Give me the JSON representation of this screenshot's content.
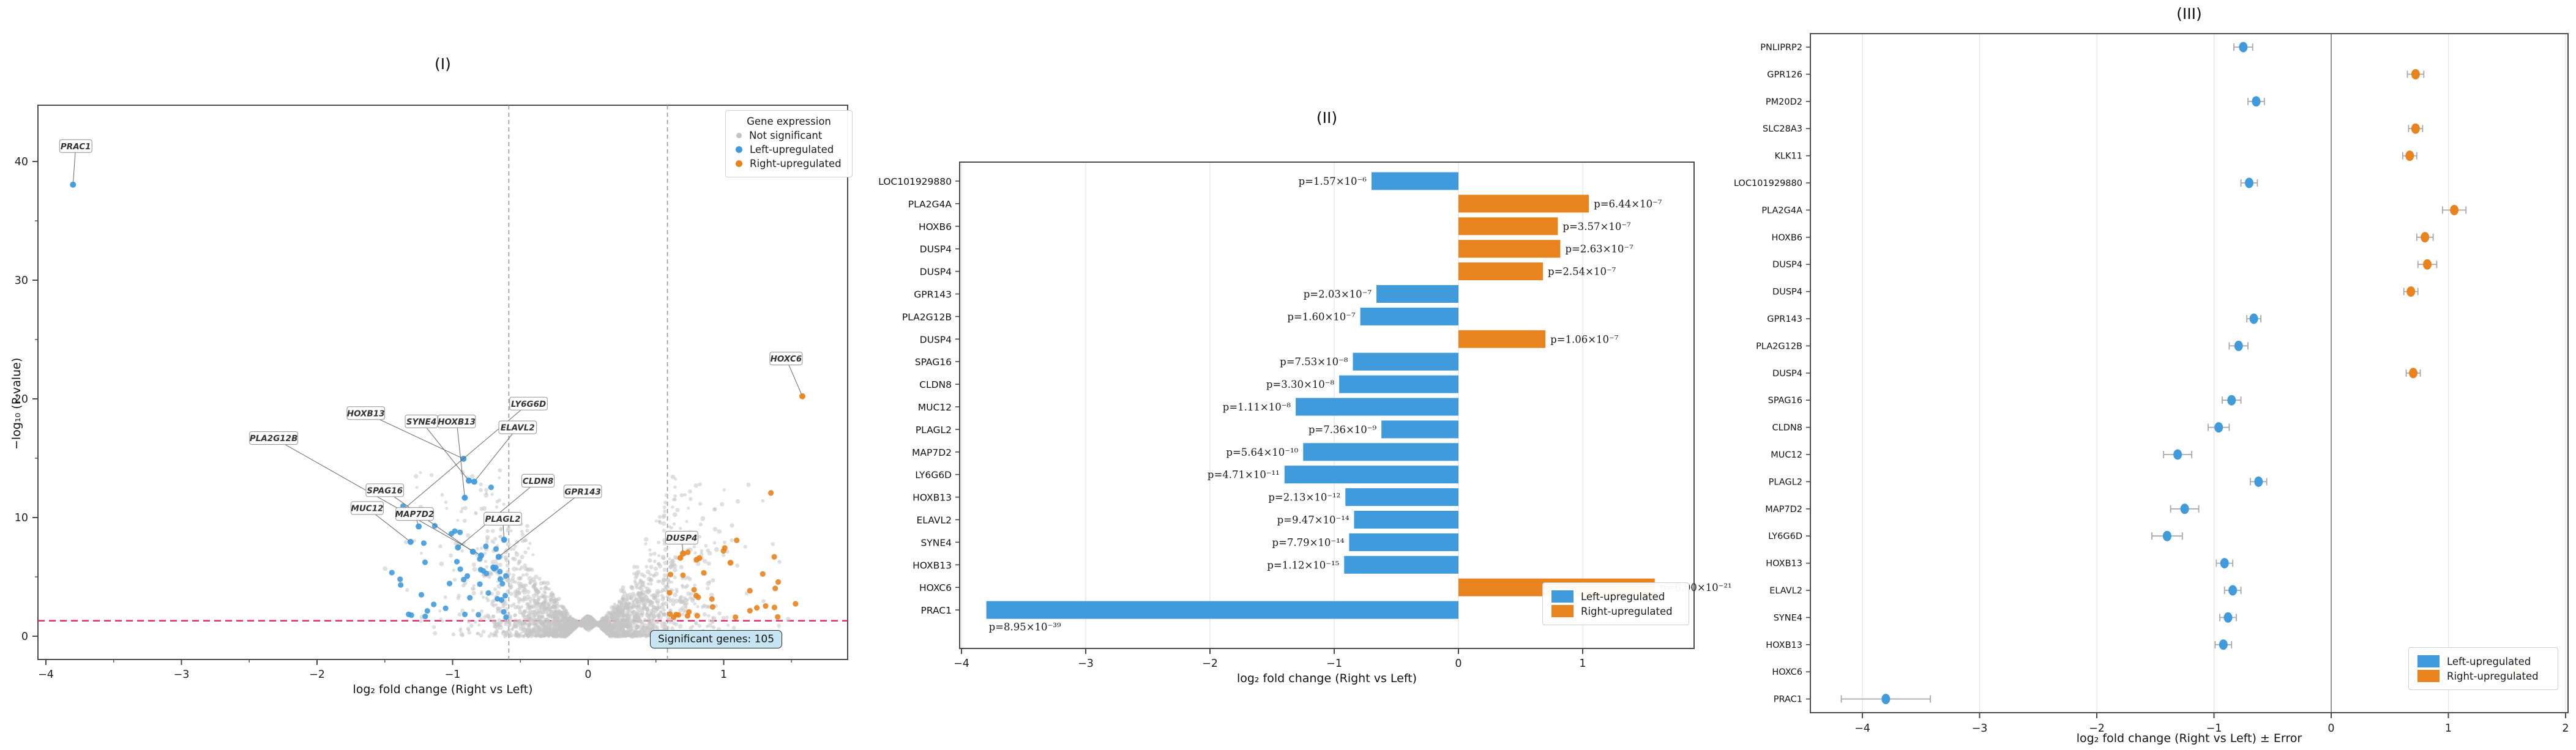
{
  "colors": {
    "left_up": "#3f9bdc",
    "right_up": "#e8831d",
    "not_significant": "#c4c4c4",
    "p_threshold_line": "#e22667",
    "fc_threshold_line": "#9a9a9a",
    "badge_bg": "#c7e4f2",
    "grid": "#e3e3e3",
    "spine": "#4a4a4a"
  },
  "chart_data": [
    {
      "id": "volcano",
      "type": "scatter",
      "title": "(I)",
      "xlabel": "log₂ fold change (Right vs Left)",
      "ylabel": "−log₁₀ (P-value)",
      "xlim": [
        -4.06,
        1.91
      ],
      "ylim": [
        -2.0,
        44.7
      ],
      "xticks": [
        "−4",
        "−3",
        "−2",
        "−1",
        "0",
        "1"
      ],
      "xtick_values": [
        -4,
        -3,
        -2,
        -1,
        0,
        1
      ],
      "yticks": [
        "0",
        "10",
        "20",
        "30",
        "40"
      ],
      "ytick_values": [
        0,
        10,
        20,
        30,
        40
      ],
      "p_threshold_y": 1.301,
      "fc_threshold_x": [
        -0.585,
        0.585
      ],
      "legend": {
        "title": "Gene expression",
        "items": [
          {
            "label": "Not significant",
            "group": "ns"
          },
          {
            "label": "Left-upregulated",
            "group": "left"
          },
          {
            "label": "Right-upregulated",
            "group": "right"
          }
        ]
      },
      "badge": "Significant genes: 105",
      "labeled_points": [
        {
          "gene": "PRAC1",
          "x": -3.8,
          "y": 38.05,
          "group": "left",
          "lx": -3.78,
          "ly": 41.3
        },
        {
          "gene": "PLA2G12B",
          "x": -0.79,
          "y": 6.8,
          "group": "left",
          "lx": -2.32,
          "ly": 16.7
        },
        {
          "gene": "HOXB13",
          "x": -0.92,
          "y": 14.95,
          "group": "left",
          "lx": -1.64,
          "ly": 18.8
        },
        {
          "gene": "SYNE4",
          "x": -0.88,
          "y": 13.11,
          "group": "left",
          "lx": -1.23,
          "ly": 18.1
        },
        {
          "gene": "HOXB13",
          "x": -0.91,
          "y": 11.67,
          "group": "left",
          "lx": -0.97,
          "ly": 18.1
        },
        {
          "gene": "LY6G6D",
          "x": -1.4,
          "y": 10.33,
          "group": "left",
          "lx": -0.44,
          "ly": 19.6
        },
        {
          "gene": "ELAVL2",
          "x": -0.84,
          "y": 13.02,
          "group": "left",
          "lx": -0.52,
          "ly": 17.6
        },
        {
          "gene": "SPAG16",
          "x": -0.85,
          "y": 7.12,
          "group": "left",
          "lx": -1.5,
          "ly": 12.3
        },
        {
          "gene": "MUC12",
          "x": -1.31,
          "y": 7.95,
          "group": "left",
          "lx": -1.63,
          "ly": 10.8
        },
        {
          "gene": "MAP7D2",
          "x": -1.25,
          "y": 9.25,
          "group": "left",
          "lx": -1.28,
          "ly": 10.3
        },
        {
          "gene": "PLAGL2",
          "x": -0.62,
          "y": 8.13,
          "group": "left",
          "lx": -0.63,
          "ly": 9.9
        },
        {
          "gene": "CLDN8",
          "x": -0.96,
          "y": 7.48,
          "group": "left",
          "lx": -0.37,
          "ly": 13.1
        },
        {
          "gene": "GPR143",
          "x": -0.66,
          "y": 6.69,
          "group": "left",
          "lx": -0.04,
          "ly": 12.2
        },
        {
          "gene": "DUSP4",
          "x": 0.7,
          "y": 6.97,
          "group": "right",
          "lx": 0.69,
          "ly": 8.3
        },
        {
          "gene": "HOXC6",
          "x": 1.58,
          "y": 20.22,
          "group": "right",
          "lx": 1.46,
          "ly": 23.4
        }
      ],
      "unlabeled_known_points": [
        {
          "gene": "LOC101929880",
          "x": -0.7,
          "y": 5.8,
          "group": "left"
        },
        {
          "gene": "PLA2G4A",
          "x": 1.05,
          "y": 6.19,
          "group": "right"
        },
        {
          "gene": "HOXB6",
          "x": 0.8,
          "y": 6.45,
          "group": "right"
        },
        {
          "gene": "DUSP4",
          "x": 0.82,
          "y": 6.58,
          "group": "right"
        },
        {
          "gene": "DUSP4",
          "x": 0.68,
          "y": 6.6,
          "group": "right"
        }
      ],
      "generated_points": {
        "seed": 7,
        "background_count": 2600,
        "left_cluster_count": 45,
        "right_cluster_count": 33,
        "note": "gray volcano cloud centered at 0; blue cluster x -0.6..-1.6, orange cluster x 0.6..1.65"
      }
    },
    {
      "id": "bars",
      "type": "bar",
      "title": "(II)",
      "xlabel": "log₂ fold change (Right vs Left)",
      "xticks": [
        "−4",
        "−3",
        "−2",
        "−1",
        "0",
        "1"
      ],
      "xtick_values": [
        -4,
        -3,
        -2,
        -1,
        0,
        1
      ],
      "xlim": [
        -4.01,
        1.9
      ],
      "legend": {
        "items": [
          {
            "label": "Left-upregulated",
            "group": "left"
          },
          {
            "label": "Right-upregulated",
            "group": "right"
          }
        ]
      },
      "bars": [
        {
          "gene": "LOC101929880",
          "log2fc": -0.7,
          "p_label": "p=1.57×10⁻⁶",
          "group": "left"
        },
        {
          "gene": "PLA2G4A",
          "log2fc": 1.05,
          "p_label": "p=6.44×10⁻⁷",
          "group": "right"
        },
        {
          "gene": "HOXB6",
          "log2fc": 0.8,
          "p_label": "p=3.57×10⁻⁷",
          "group": "right"
        },
        {
          "gene": "DUSP4",
          "log2fc": 0.82,
          "p_label": "p=2.63×10⁻⁷",
          "group": "right"
        },
        {
          "gene": "DUSP4",
          "log2fc": 0.68,
          "p_label": "p=2.54×10⁻⁷",
          "group": "right"
        },
        {
          "gene": "GPR143",
          "log2fc": -0.66,
          "p_label": "p=2.03×10⁻⁷",
          "group": "left"
        },
        {
          "gene": "PLA2G12B",
          "log2fc": -0.79,
          "p_label": "p=1.60×10⁻⁷",
          "group": "left"
        },
        {
          "gene": "DUSP4",
          "log2fc": 0.7,
          "p_label": "p=1.06×10⁻⁷",
          "group": "right"
        },
        {
          "gene": "SPAG16",
          "log2fc": -0.85,
          "p_label": "p=7.53×10⁻⁸",
          "group": "left"
        },
        {
          "gene": "CLDN8",
          "log2fc": -0.96,
          "p_label": "p=3.30×10⁻⁸",
          "group": "left"
        },
        {
          "gene": "MUC12",
          "log2fc": -1.31,
          "p_label": "p=1.11×10⁻⁸",
          "group": "left"
        },
        {
          "gene": "PLAGL2",
          "log2fc": -0.62,
          "p_label": "p=7.36×10⁻⁹",
          "group": "left"
        },
        {
          "gene": "MAP7D2",
          "log2fc": -1.25,
          "p_label": "p=5.64×10⁻¹⁰",
          "group": "left"
        },
        {
          "gene": "LY6G6D",
          "log2fc": -1.4,
          "p_label": "p=4.71×10⁻¹¹",
          "group": "left"
        },
        {
          "gene": "HOXB13",
          "log2fc": -0.91,
          "p_label": "p=2.13×10⁻¹²",
          "group": "left"
        },
        {
          "gene": "ELAVL2",
          "log2fc": -0.84,
          "p_label": "p=9.47×10⁻¹⁴",
          "group": "left"
        },
        {
          "gene": "SYNE4",
          "log2fc": -0.88,
          "p_label": "p=7.79×10⁻¹⁴",
          "group": "left"
        },
        {
          "gene": "HOXB13",
          "log2fc": -0.92,
          "p_label": "p=1.12×10⁻¹⁵",
          "group": "left"
        },
        {
          "gene": "HOXC6",
          "log2fc": 1.58,
          "p_label": "p=6.00×10⁻²¹",
          "group": "right"
        },
        {
          "gene": "PRAC1",
          "log2fc": -3.8,
          "p_label": "p=8.95×10⁻³⁹",
          "group": "left"
        }
      ]
    },
    {
      "id": "forest",
      "type": "scatter-error",
      "title": "(III)",
      "xlabel": "log₂ fold change (Right vs Left) ± Error",
      "xticks": [
        "−4",
        "−3",
        "−2",
        "−1",
        "0",
        "1",
        "2"
      ],
      "xtick_values": [
        -4,
        -3,
        -2,
        -1,
        0,
        1,
        2
      ],
      "xlim": [
        -4.44,
        2.02
      ],
      "legend": {
        "items": [
          {
            "label": "Left-upregulated",
            "group": "left"
          },
          {
            "label": "Right-upregulated",
            "group": "right"
          }
        ]
      },
      "points": [
        {
          "gene": "PNLIPRP2",
          "value": -0.75,
          "error": 0.08,
          "group": "left"
        },
        {
          "gene": "GPR126",
          "value": 0.72,
          "error": 0.07,
          "group": "right"
        },
        {
          "gene": "PM20D2",
          "value": -0.64,
          "error": 0.07,
          "group": "left"
        },
        {
          "gene": "SLC28A3",
          "value": 0.72,
          "error": 0.06,
          "group": "right"
        },
        {
          "gene": "KLK11",
          "value": 0.67,
          "error": 0.06,
          "group": "right"
        },
        {
          "gene": "LOC101929880",
          "value": -0.7,
          "error": 0.07,
          "group": "left"
        },
        {
          "gene": "PLA2G4A",
          "value": 1.05,
          "error": 0.1,
          "group": "right"
        },
        {
          "gene": "HOXB6",
          "value": 0.8,
          "error": 0.07,
          "group": "right"
        },
        {
          "gene": "DUSP4",
          "value": 0.82,
          "error": 0.08,
          "group": "right"
        },
        {
          "gene": "DUSP4",
          "value": 0.68,
          "error": 0.06,
          "group": "right"
        },
        {
          "gene": "GPR143",
          "value": -0.66,
          "error": 0.06,
          "group": "left"
        },
        {
          "gene": "PLA2G12B",
          "value": -0.79,
          "error": 0.08,
          "group": "left"
        },
        {
          "gene": "DUSP4",
          "value": 0.7,
          "error": 0.06,
          "group": "right"
        },
        {
          "gene": "SPAG16",
          "value": -0.85,
          "error": 0.08,
          "group": "left"
        },
        {
          "gene": "CLDN8",
          "value": -0.96,
          "error": 0.09,
          "group": "left"
        },
        {
          "gene": "MUC12",
          "value": -1.31,
          "error": 0.12,
          "group": "left"
        },
        {
          "gene": "PLAGL2",
          "value": -0.62,
          "error": 0.07,
          "group": "left"
        },
        {
          "gene": "MAP7D2",
          "value": -1.25,
          "error": 0.12,
          "group": "left"
        },
        {
          "gene": "LY6G6D",
          "value": -1.4,
          "error": 0.13,
          "group": "left"
        },
        {
          "gene": "HOXB13",
          "value": -0.91,
          "error": 0.07,
          "group": "left"
        },
        {
          "gene": "ELAVL2",
          "value": -0.84,
          "error": 0.07,
          "group": "left"
        },
        {
          "gene": "SYNE4",
          "value": -0.88,
          "error": 0.07,
          "group": "left"
        },
        {
          "gene": "HOXB13",
          "value": -0.92,
          "error": 0.07,
          "group": "left"
        },
        {
          "gene": "HOXC6",
          "value": 1.58,
          "error": 0.07,
          "group": "right"
        },
        {
          "gene": "PRAC1",
          "value": -3.8,
          "error": 0.38,
          "group": "left"
        }
      ]
    }
  ]
}
